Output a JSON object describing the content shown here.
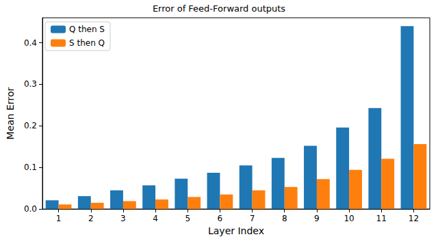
{
  "chart_data": {
    "type": "bar",
    "title": "Error of Feed-Forward outputs",
    "x_label": "Layer Index",
    "y_label": "Mean Error",
    "categories": [
      "1",
      "2",
      "3",
      "4",
      "5",
      "6",
      "7",
      "8",
      "9",
      "10",
      "11",
      "12"
    ],
    "series": [
      {
        "name": "Q then S",
        "color": "#1f77b4",
        "values": [
          0.021,
          0.031,
          0.045,
          0.057,
          0.073,
          0.087,
          0.105,
          0.123,
          0.152,
          0.196,
          0.243,
          0.44
        ]
      },
      {
        "name": "S then Q",
        "color": "#ff7f0e",
        "values": [
          0.011,
          0.015,
          0.019,
          0.023,
          0.029,
          0.035,
          0.045,
          0.053,
          0.072,
          0.094,
          0.121,
          0.156
        ]
      }
    ],
    "ylim": [
      0,
      0.46
    ],
    "yticks": [
      {
        "value": 0,
        "label": "0.0"
      },
      0.1,
      0.2,
      0.3,
      0.4
    ],
    "grid": false,
    "legend": "upper left"
  }
}
